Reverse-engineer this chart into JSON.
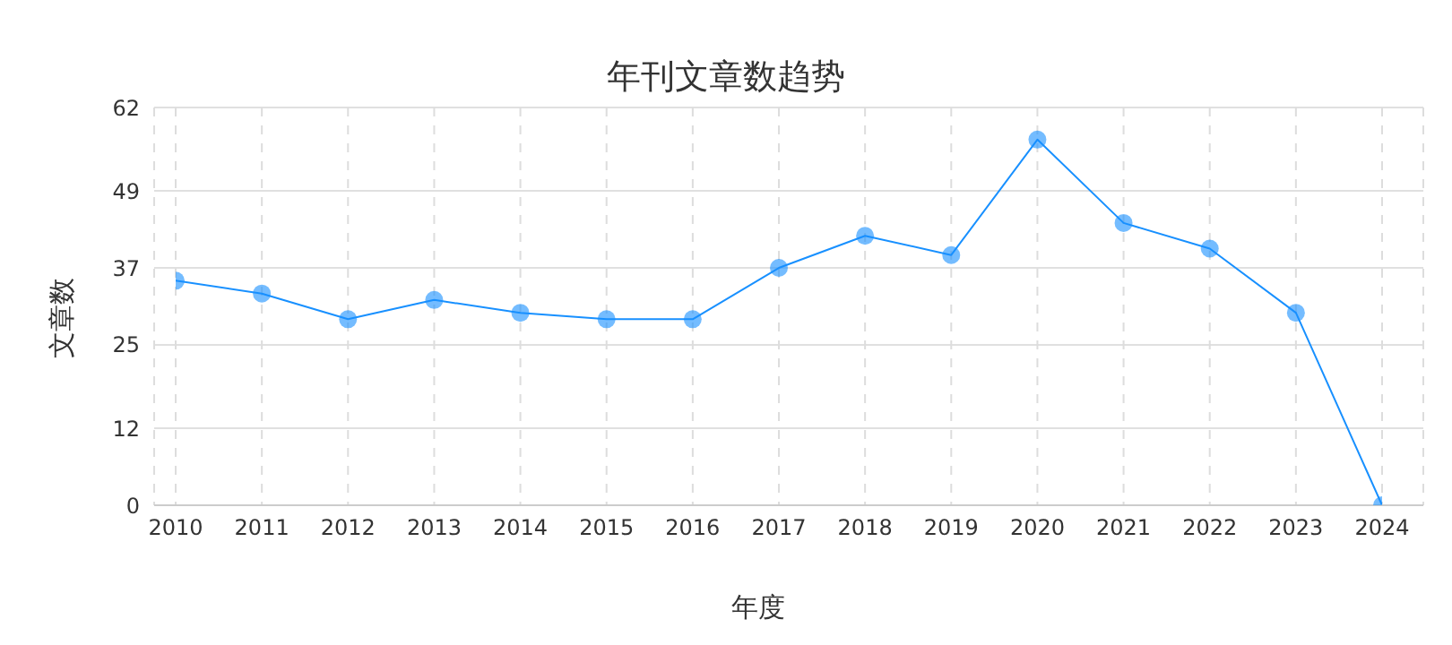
{
  "chart_data": {
    "type": "line",
    "title": "年刊文章数趋势",
    "xlabel": "年度",
    "ylabel": "文章数",
    "categories": [
      "2010",
      "2011",
      "2012",
      "2013",
      "2014",
      "2015",
      "2016",
      "2017",
      "2018",
      "2019",
      "2020",
      "2021",
      "2022",
      "2023",
      "2024"
    ],
    "series": [
      {
        "color": "#1890ff",
        "values": [
          35,
          33,
          29,
          32,
          30,
          29,
          29,
          37,
          42,
          39,
          57,
          44,
          40,
          30,
          0
        ]
      }
    ],
    "ylim": [
      0,
      62
    ],
    "yticks": [
      0,
      12,
      25,
      37,
      49,
      62
    ],
    "grid": true,
    "marker": "circle",
    "line_style": "solid"
  }
}
